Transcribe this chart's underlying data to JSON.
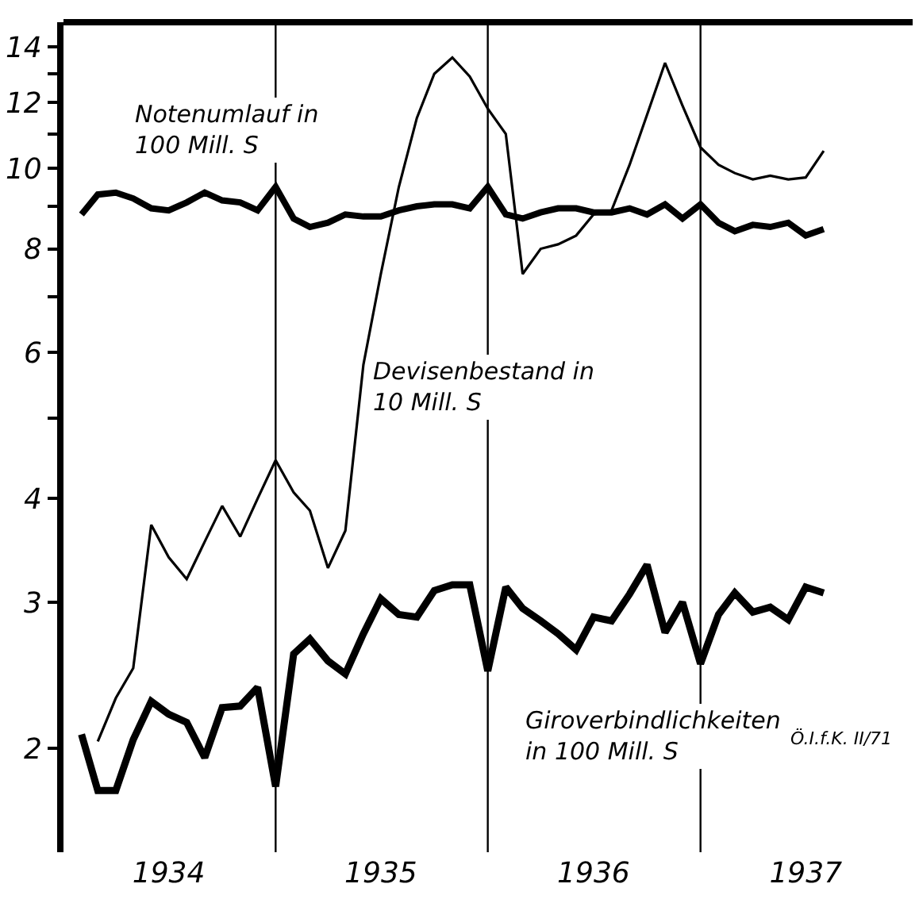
{
  "chart_data": {
    "type": "line",
    "log": "y",
    "legend": false,
    "marker": "none",
    "line_style": "solid",
    "x": [
      "1934-02",
      "1934-03",
      "1934-04",
      "1934-05",
      "1934-06",
      "1934-07",
      "1934-08",
      "1934-09",
      "1934-10",
      "1934-11",
      "1934-12",
      "1935-01",
      "1935-02",
      "1935-03",
      "1935-04",
      "1935-05",
      "1935-06",
      "1935-07",
      "1935-08",
      "1935-09",
      "1935-10",
      "1935-11",
      "1935-12",
      "1936-01",
      "1936-02",
      "1936-03",
      "1936-04",
      "1936-05",
      "1936-06",
      "1936-07",
      "1936-08",
      "1936-09",
      "1936-10",
      "1936-11",
      "1936-12",
      "1937-01",
      "1937-02",
      "1937-03",
      "1937-04",
      "1937-05",
      "1937-06",
      "1937-07",
      "1937-08"
    ],
    "series": [
      {
        "name": "Notenumlauf in\n100 Mill. S",
        "color": "#000000",
        "values": [
          8.8,
          9.3,
          9.35,
          9.2,
          8.95,
          8.9,
          9.1,
          9.35,
          9.15,
          9.1,
          8.9,
          9.5,
          8.7,
          8.5,
          8.6,
          8.8,
          8.75,
          8.75,
          8.9,
          9.0,
          9.05,
          9.05,
          8.95,
          9.5,
          8.8,
          8.7,
          8.85,
          8.95,
          8.95,
          8.85,
          8.85,
          8.95,
          8.8,
          9.05,
          8.7,
          9.05,
          8.6,
          8.4,
          8.55,
          8.5,
          8.6,
          8.3,
          8.45
        ]
      },
      {
        "name": "Devisenbestand in\n10 Mill. S",
        "color": "#000000",
        "values": [
          null,
          2.04,
          2.3,
          2.5,
          3.72,
          3.4,
          3.2,
          3.55,
          3.92,
          3.6,
          4.0,
          4.45,
          4.07,
          3.87,
          3.3,
          3.66,
          5.8,
          7.46,
          9.5,
          11.5,
          13.0,
          13.6,
          12.9,
          11.8,
          11.0,
          7.46,
          8.0,
          8.1,
          8.3,
          8.8,
          8.9,
          10.1,
          11.6,
          13.4,
          11.9,
          10.6,
          10.1,
          9.87,
          9.7,
          9.8,
          9.7,
          9.75,
          10.5
        ]
      },
      {
        "name": "Giroverbindlichkeiten\nin 100 Mill. S",
        "color": "#000000",
        "values": [
          2.08,
          1.78,
          1.78,
          2.05,
          2.28,
          2.2,
          2.15,
          1.95,
          2.24,
          2.25,
          2.37,
          1.8,
          2.6,
          2.71,
          2.55,
          2.46,
          2.75,
          3.03,
          2.9,
          2.88,
          3.1,
          3.15,
          3.15,
          2.48,
          3.13,
          2.95,
          2.85,
          2.75,
          2.63,
          2.88,
          2.85,
          3.07,
          3.33,
          2.76,
          3.0,
          2.53,
          2.9,
          3.08,
          2.92,
          2.96,
          2.86,
          3.13,
          3.08
        ]
      }
    ],
    "xlim": [
      "1934-01-01",
      "1938-01-01"
    ],
    "xticks": [
      {
        "value": "1934-07-01",
        "label": "1934"
      },
      {
        "value": "1935-07-01",
        "label": "1935"
      },
      {
        "value": "1936-07-01",
        "label": "1936"
      },
      {
        "value": "1937-07-01",
        "label": "1937"
      }
    ],
    "ylim": [
      1.5,
      15
    ],
    "yticks": [
      2,
      3,
      4,
      {
        "value": 5,
        "label": null
      },
      6,
      {
        "value": 7,
        "label": null
      },
      8,
      {
        "value": 9,
        "label": null
      },
      10,
      {
        "value": 11,
        "label": null
      },
      12,
      {
        "value": 13,
        "label": null
      },
      14
    ],
    "ref_lines": [
      {
        "axis": "x",
        "value": "1935-01-01",
        "label": null,
        "color": "#000000"
      },
      {
        "axis": "x",
        "value": "1936-01-01",
        "label": null,
        "color": "#000000"
      },
      {
        "axis": "x",
        "value": "1937-01-01",
        "label": null,
        "color": "#000000"
      }
    ],
    "annotations": [
      "Ö.I.f.K. II/71"
    ]
  }
}
